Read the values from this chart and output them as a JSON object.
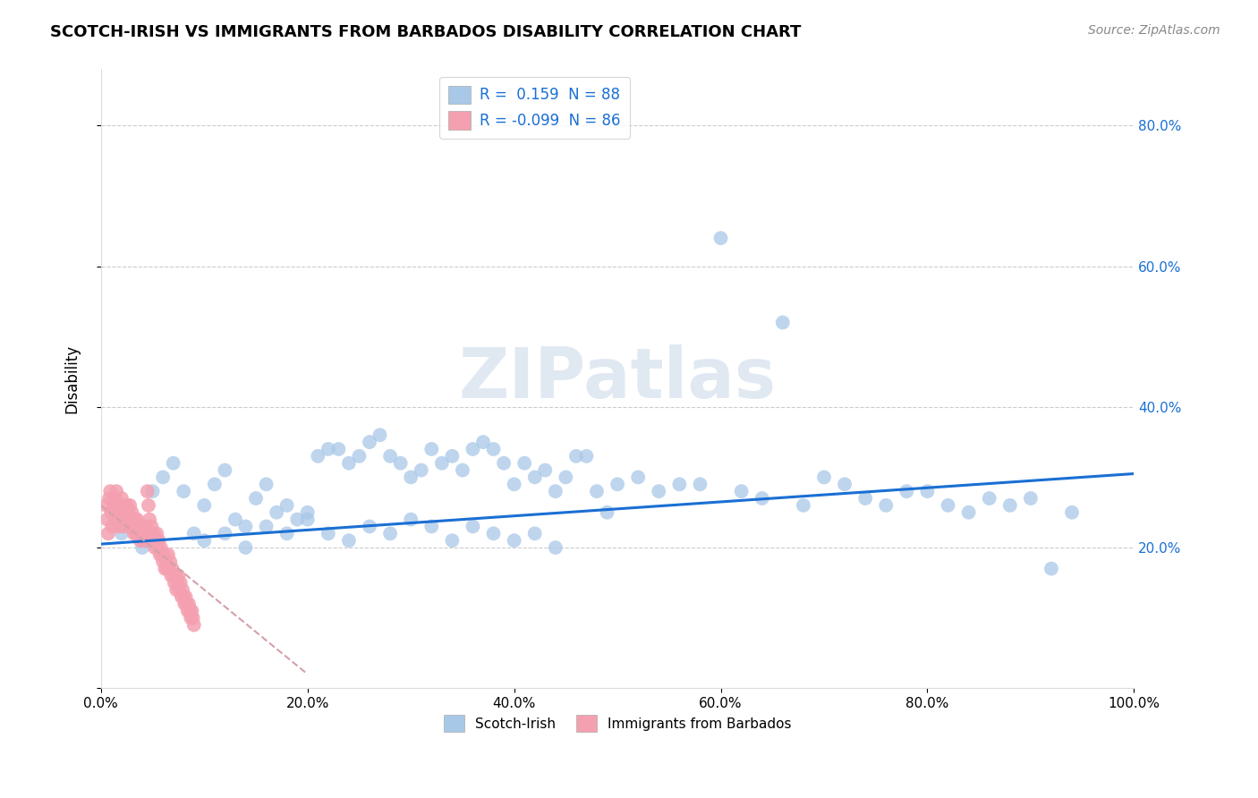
{
  "title": "SCOTCH-IRISH VS IMMIGRANTS FROM BARBADOS DISABILITY CORRELATION CHART",
  "source_text": "Source: ZipAtlas.com",
  "ylabel": "Disability",
  "xlim": [
    0,
    1.0
  ],
  "ylim": [
    0,
    0.88
  ],
  "xticks": [
    0.0,
    0.2,
    0.4,
    0.6,
    0.8,
    1.0
  ],
  "xtick_labels": [
    "0.0%",
    "20.0%",
    "40.0%",
    "60.0%",
    "80.0%",
    "100.0%"
  ],
  "yticks": [
    0.0,
    0.2,
    0.4,
    0.6,
    0.8
  ],
  "ytick_labels_left": [
    "",
    "",
    "",
    "",
    ""
  ],
  "ytick_labels_right": [
    "20.0%",
    "40.0%",
    "60.0%",
    "80.0%"
  ],
  "ytick_right_vals": [
    0.2,
    0.4,
    0.6,
    0.8
  ],
  "scotch_irish_R": 0.159,
  "scotch_irish_N": 88,
  "barbados_R": -0.099,
  "barbados_N": 86,
  "scotch_irish_color": "#a8c8e8",
  "barbados_color": "#f4a0b0",
  "trend_blue": "#1a6fd4",
  "trend_pink": "#d4a0a8",
  "watermark": "ZIPatlas",
  "watermark_color": "#c8d8e8",
  "scotch_irish_x": [
    0.02,
    0.04,
    0.05,
    0.06,
    0.07,
    0.08,
    0.09,
    0.1,
    0.11,
    0.12,
    0.13,
    0.14,
    0.15,
    0.16,
    0.17,
    0.18,
    0.19,
    0.2,
    0.21,
    0.22,
    0.23,
    0.24,
    0.25,
    0.26,
    0.27,
    0.28,
    0.29,
    0.3,
    0.31,
    0.32,
    0.33,
    0.34,
    0.35,
    0.36,
    0.37,
    0.38,
    0.39,
    0.4,
    0.41,
    0.42,
    0.43,
    0.44,
    0.45,
    0.46,
    0.47,
    0.48,
    0.49,
    0.5,
    0.52,
    0.54,
    0.56,
    0.58,
    0.6,
    0.62,
    0.64,
    0.66,
    0.68,
    0.7,
    0.72,
    0.74,
    0.76,
    0.78,
    0.8,
    0.82,
    0.84,
    0.86,
    0.88,
    0.9,
    0.92,
    0.94,
    0.1,
    0.12,
    0.14,
    0.16,
    0.18,
    0.2,
    0.22,
    0.24,
    0.26,
    0.28,
    0.3,
    0.32,
    0.34,
    0.36,
    0.38,
    0.4,
    0.42,
    0.44
  ],
  "scotch_irish_y": [
    0.22,
    0.2,
    0.28,
    0.3,
    0.32,
    0.28,
    0.22,
    0.26,
    0.29,
    0.31,
    0.24,
    0.23,
    0.27,
    0.29,
    0.25,
    0.26,
    0.24,
    0.25,
    0.33,
    0.34,
    0.34,
    0.32,
    0.33,
    0.35,
    0.36,
    0.33,
    0.32,
    0.3,
    0.31,
    0.34,
    0.32,
    0.33,
    0.31,
    0.34,
    0.35,
    0.34,
    0.32,
    0.29,
    0.32,
    0.3,
    0.31,
    0.28,
    0.3,
    0.33,
    0.33,
    0.28,
    0.25,
    0.29,
    0.3,
    0.28,
    0.29,
    0.29,
    0.64,
    0.28,
    0.27,
    0.52,
    0.26,
    0.3,
    0.29,
    0.27,
    0.26,
    0.28,
    0.28,
    0.26,
    0.25,
    0.27,
    0.26,
    0.27,
    0.17,
    0.25,
    0.21,
    0.22,
    0.2,
    0.23,
    0.22,
    0.24,
    0.22,
    0.21,
    0.23,
    0.22,
    0.24,
    0.23,
    0.21,
    0.23,
    0.22,
    0.21,
    0.22,
    0.2
  ],
  "barbados_x": [
    0.005,
    0.006,
    0.007,
    0.008,
    0.009,
    0.01,
    0.011,
    0.012,
    0.013,
    0.014,
    0.015,
    0.016,
    0.017,
    0.018,
    0.019,
    0.02,
    0.021,
    0.022,
    0.023,
    0.024,
    0.025,
    0.026,
    0.027,
    0.028,
    0.029,
    0.03,
    0.031,
    0.032,
    0.033,
    0.034,
    0.035,
    0.036,
    0.037,
    0.038,
    0.039,
    0.04,
    0.041,
    0.042,
    0.043,
    0.044,
    0.045,
    0.046,
    0.047,
    0.048,
    0.049,
    0.05,
    0.051,
    0.052,
    0.053,
    0.054,
    0.055,
    0.056,
    0.057,
    0.058,
    0.059,
    0.06,
    0.061,
    0.062,
    0.063,
    0.064,
    0.065,
    0.066,
    0.067,
    0.068,
    0.069,
    0.07,
    0.071,
    0.072,
    0.073,
    0.074,
    0.075,
    0.076,
    0.077,
    0.078,
    0.079,
    0.08,
    0.081,
    0.082,
    0.083,
    0.084,
    0.085,
    0.086,
    0.087,
    0.088,
    0.089,
    0.09
  ],
  "barbados_y": [
    0.26,
    0.24,
    0.22,
    0.27,
    0.28,
    0.25,
    0.23,
    0.26,
    0.27,
    0.24,
    0.28,
    0.26,
    0.23,
    0.25,
    0.24,
    0.27,
    0.25,
    0.23,
    0.26,
    0.24,
    0.26,
    0.25,
    0.23,
    0.26,
    0.24,
    0.25,
    0.23,
    0.22,
    0.24,
    0.22,
    0.24,
    0.22,
    0.23,
    0.21,
    0.22,
    0.23,
    0.21,
    0.22,
    0.23,
    0.21,
    0.28,
    0.26,
    0.24,
    0.22,
    0.23,
    0.21,
    0.22,
    0.2,
    0.21,
    0.22,
    0.2,
    0.21,
    0.19,
    0.2,
    0.19,
    0.18,
    0.19,
    0.17,
    0.18,
    0.17,
    0.19,
    0.17,
    0.18,
    0.16,
    0.17,
    0.16,
    0.15,
    0.16,
    0.14,
    0.15,
    0.16,
    0.14,
    0.15,
    0.13,
    0.14,
    0.13,
    0.12,
    0.13,
    0.12,
    0.11,
    0.12,
    0.11,
    0.1,
    0.11,
    0.1,
    0.09
  ],
  "blue_trend_x0": 0.0,
  "blue_trend_y0": 0.205,
  "blue_trend_x1": 1.0,
  "blue_trend_y1": 0.305,
  "pink_trend_x0": 0.0,
  "pink_trend_y0": 0.26,
  "pink_trend_x1": 0.2,
  "pink_trend_y1": 0.02
}
